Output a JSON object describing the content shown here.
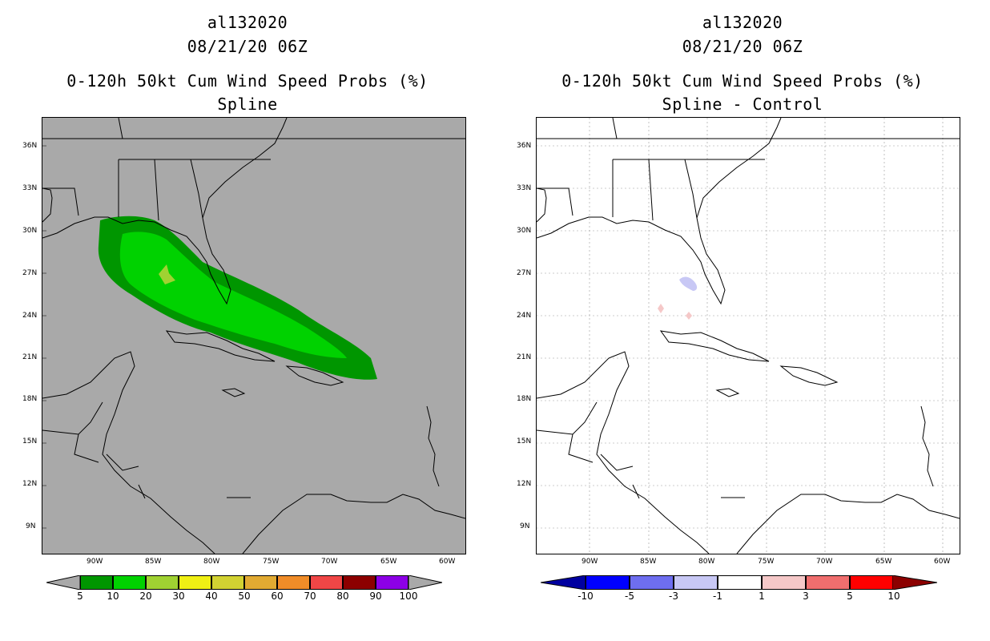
{
  "left_panel": {
    "title1": "al132020",
    "title2": "08/21/20 06Z",
    "title3": "0-120h 50kt Cum Wind Speed Probs (%)",
    "subtitle": "Spline",
    "background_color": "#a9a9a9",
    "colorbar": {
      "colors": [
        "#009600",
        "#00d200",
        "#a0d232",
        "#f0f014",
        "#d2d232",
        "#e1aa32",
        "#f08c28",
        "#f04646",
        "#8c0000",
        "#8c00e6"
      ],
      "labels": [
        "5",
        "10",
        "20",
        "30",
        "40",
        "50",
        "60",
        "70",
        "80",
        "90",
        "100"
      ]
    }
  },
  "right_panel": {
    "title1": "al132020",
    "title2": "08/21/20 06Z",
    "title3": "0-120h 50kt Cum Wind Speed Probs (%)",
    "subtitle": "Spline - Control",
    "background_color": "#ffffff",
    "colorbar": {
      "colors": [
        "#0000a0",
        "#0000ff",
        "#6e6ef0",
        "#c8c8f5",
        "#ffffff",
        "#f5c8c8",
        "#f06e6e",
        "#ff0000",
        "#8c0000"
      ],
      "labels": [
        "-10",
        "-5",
        "-3",
        "-1",
        "1",
        "3",
        "5",
        "10"
      ]
    }
  },
  "map": {
    "lat_labels": [
      "36N",
      "33N",
      "30N",
      "27N",
      "24N",
      "21N",
      "18N",
      "15N",
      "12N",
      "9N"
    ],
    "lon_labels": [
      "90W",
      "85W",
      "80W",
      "75W",
      "70W",
      "65W",
      "60W"
    ]
  },
  "chart_data": [
    {
      "type": "heatmap",
      "title": "0-120h 50kt Cum Wind Speed Probs (%) - Spline",
      "storm": "al132020",
      "time": "08/21/20 06Z",
      "lat_range": [
        7,
        38
      ],
      "lon_range": [
        -95,
        -59
      ],
      "contour_levels": [
        5,
        10,
        20,
        30,
        40,
        50,
        60,
        70,
        80,
        90,
        100
      ],
      "regions": [
        {
          "level": "5-10",
          "description": "outer swath from Gulf of Mexico to east of Hispaniola"
        },
        {
          "level": "10-20",
          "description": "inner swath over Florida, Bahamas and Cuba"
        },
        {
          "level": "20-30",
          "description": "small area near 27N 85W"
        }
      ]
    },
    {
      "type": "heatmap",
      "title": "0-120h 50kt Cum Wind Speed Probs (%) - Spline - Control",
      "storm": "al132020",
      "time": "08/21/20 06Z",
      "contour_levels": [
        -10,
        -5,
        -3,
        -1,
        1,
        3,
        5,
        10
      ],
      "regions": [
        {
          "level": "-3 to -1",
          "description": "small area near SW Florida coast"
        },
        {
          "level": "1 to 3",
          "description": "small spots near 24.5N 83.5W and 24N 81.5W"
        }
      ]
    }
  ]
}
